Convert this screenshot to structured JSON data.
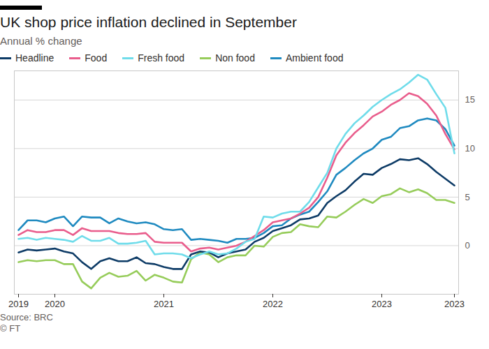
{
  "chart_data": {
    "type": "line",
    "title": "UK shop price inflation declined in September",
    "subtitle": "Annual % change",
    "source": "Source: BRC",
    "credit": "© FT",
    "categories": [
      "2019",
      null,
      null,
      null,
      "2020",
      null,
      null,
      null,
      null,
      null,
      null,
      null,
      null,
      null,
      null,
      null,
      "2021",
      null,
      null,
      null,
      null,
      null,
      null,
      null,
      null,
      null,
      null,
      null,
      "2022",
      null,
      null,
      null,
      null,
      null,
      null,
      null,
      null,
      null,
      null,
      null,
      "2023",
      null,
      null,
      null,
      null,
      null,
      null,
      null,
      "2023"
    ],
    "series": [
      {
        "name": "Headline",
        "color": "#0d3b66",
        "values": [
          -0.7,
          -0.4,
          -0.5,
          -0.4,
          -0.3,
          -0.6,
          -0.8,
          -1.7,
          -2.4,
          -1.6,
          -1.3,
          -1.6,
          -1.6,
          -1.2,
          -1.8,
          -1.9,
          -2.2,
          -2.4,
          -2.4,
          -0.9,
          -0.6,
          -0.7,
          -1.2,
          -0.8,
          -0.6,
          -0.4,
          0.4,
          0.8,
          1.5,
          1.8,
          2.1,
          2.7,
          2.8,
          3.1,
          4.4,
          5.1,
          5.7,
          6.6,
          7.4,
          7.3,
          8.0,
          8.4,
          8.9,
          8.8,
          9.0,
          8.4,
          7.6,
          6.9,
          6.2
        ]
      },
      {
        "name": "Food",
        "color": "#e95d8c",
        "values": [
          1.1,
          1.6,
          1.4,
          1.4,
          1.6,
          1.6,
          1.1,
          1.8,
          1.5,
          1.5,
          1.5,
          1.3,
          1.2,
          1.2,
          1.3,
          0.4,
          0.3,
          0.3,
          0.3,
          -0.6,
          -0.3,
          -0.2,
          -0.4,
          -0.2,
          0.0,
          0.4,
          1.0,
          1.6,
          2.4,
          2.6,
          2.8,
          3.3,
          3.9,
          5.0,
          7.0,
          9.3,
          10.6,
          11.6,
          12.4,
          13.3,
          13.8,
          14.5,
          15.0,
          15.7,
          15.4,
          14.6,
          13.4,
          11.5,
          9.9
        ]
      },
      {
        "name": "Fresh food",
        "color": "#6fdcea",
        "values": [
          0.7,
          0.8,
          0.6,
          0.8,
          0.7,
          0.6,
          0.4,
          1.0,
          0.5,
          0.5,
          0.8,
          0.2,
          0.2,
          0.3,
          0.5,
          -0.9,
          -0.8,
          -0.8,
          -0.9,
          -1.3,
          -0.9,
          -0.6,
          -0.9,
          -0.8,
          -0.3,
          0.4,
          0.7,
          3.0,
          2.9,
          3.3,
          3.5,
          3.5,
          4.5,
          6.0,
          7.5,
          10.0,
          11.5,
          12.6,
          13.4,
          14.3,
          15.0,
          15.6,
          16.1,
          16.8,
          17.6,
          17.1,
          15.6,
          14.2,
          9.5
        ]
      },
      {
        "name": "Non food",
        "color": "#96cc5a",
        "values": [
          -1.7,
          -1.5,
          -1.6,
          -1.5,
          -1.5,
          -1.9,
          -1.9,
          -3.7,
          -4.4,
          -3.3,
          -2.8,
          -3.2,
          -3.1,
          -2.6,
          -3.6,
          -3.0,
          -3.3,
          -3.7,
          -3.8,
          -1.4,
          -0.7,
          -0.9,
          -1.7,
          -1.2,
          -1.0,
          -1.0,
          0.0,
          -0.1,
          0.9,
          1.3,
          1.4,
          2.2,
          2.0,
          1.9,
          3.0,
          2.9,
          3.5,
          4.2,
          4.8,
          4.4,
          5.1,
          5.3,
          5.9,
          5.5,
          5.8,
          5.4,
          4.7,
          4.7,
          4.4
        ]
      },
      {
        "name": "Ambient food",
        "color": "#1f8ac0",
        "values": [
          1.6,
          2.6,
          2.6,
          2.4,
          2.8,
          3.0,
          2.0,
          3.0,
          2.9,
          2.9,
          2.3,
          2.8,
          2.5,
          2.3,
          2.4,
          2.2,
          1.7,
          1.6,
          1.7,
          0.6,
          0.7,
          0.6,
          0.5,
          0.3,
          0.7,
          0.7,
          0.8,
          1.3,
          2.0,
          2.1,
          2.8,
          3.2,
          3.5,
          4.5,
          5.6,
          7.3,
          8.0,
          8.8,
          9.5,
          10.0,
          10.9,
          11.2,
          12.1,
          12.3,
          12.9,
          13.1,
          12.9,
          12.0,
          10.3
        ]
      }
    ],
    "ylim": [
      -5,
      18
    ],
    "yticks": [
      0,
      5,
      10,
      15
    ],
    "grid": true
  }
}
